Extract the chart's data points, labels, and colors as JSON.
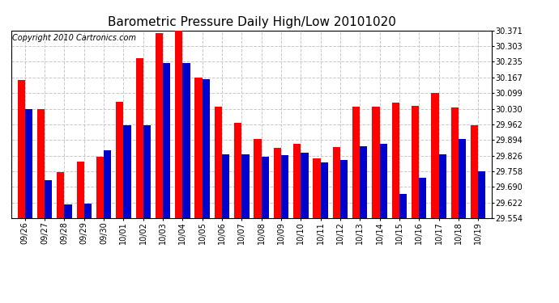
{
  "title": "Barometric Pressure Daily High/Low 20101020",
  "copyright": "Copyright 2010 Cartronics.com",
  "dates": [
    "09/26",
    "09/27",
    "09/28",
    "09/29",
    "09/30",
    "10/01",
    "10/02",
    "10/03",
    "10/04",
    "10/05",
    "10/06",
    "10/07",
    "10/08",
    "10/09",
    "10/10",
    "10/11",
    "10/12",
    "10/13",
    "10/14",
    "10/15",
    "10/16",
    "10/17",
    "10/18",
    "10/19"
  ],
  "high_values": [
    30.155,
    30.03,
    29.755,
    29.8,
    29.82,
    30.06,
    30.25,
    30.358,
    30.368,
    30.165,
    30.038,
    29.97,
    29.898,
    29.858,
    29.878,
    29.815,
    29.862,
    30.038,
    30.038,
    30.058,
    30.044,
    30.1,
    30.036,
    29.958
  ],
  "low_values": [
    30.028,
    29.72,
    29.612,
    29.618,
    29.848,
    29.958,
    29.958,
    30.228,
    30.228,
    30.158,
    29.832,
    29.83,
    29.822,
    29.828,
    29.838,
    29.798,
    29.808,
    29.868,
    29.878,
    29.658,
    29.728,
    29.832,
    29.898,
    29.758
  ],
  "ylim": [
    29.554,
    30.371
  ],
  "yticks": [
    29.554,
    29.622,
    29.69,
    29.758,
    29.826,
    29.894,
    29.962,
    30.03,
    30.099,
    30.167,
    30.235,
    30.303,
    30.371
  ],
  "bar_width": 0.38,
  "high_color": "#ff0000",
  "low_color": "#0000cc",
  "background_color": "#ffffff",
  "grid_color": "#c8c8c8",
  "title_fontsize": 11,
  "copyright_fontsize": 7,
  "tick_fontsize": 7
}
